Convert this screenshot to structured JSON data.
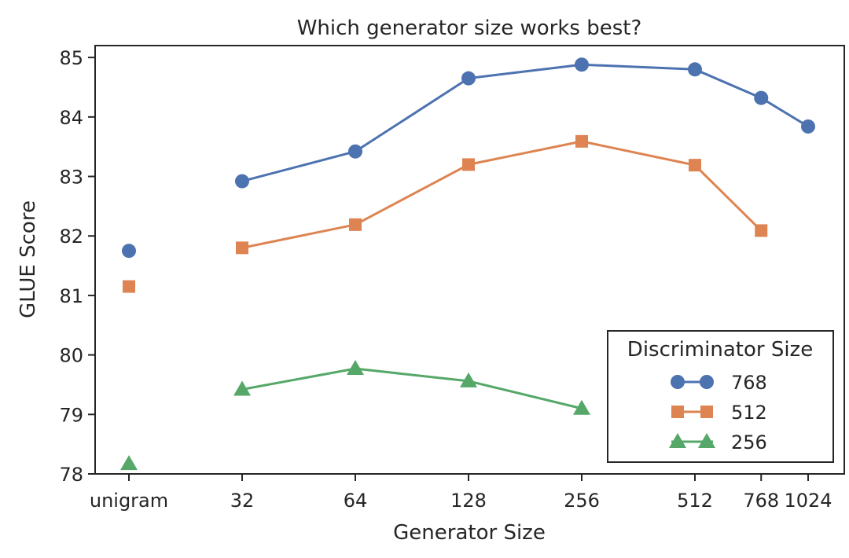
{
  "chart_data": {
    "type": "line",
    "title": "Which generator size works best?",
    "xlabel": "Generator Size",
    "ylabel": "GLUE Score",
    "x_categories": [
      "unigram",
      "32",
      "64",
      "128",
      "256",
      "512",
      "768",
      "1024"
    ],
    "x_positions": [
      0,
      1,
      2,
      3,
      4,
      5,
      5.585,
      6
    ],
    "ylim": [
      78,
      85.2
    ],
    "yticks": [
      78,
      79,
      80,
      81,
      82,
      83,
      84,
      85
    ],
    "grid": false,
    "legend": {
      "title": "Discriminator Size",
      "placement": "lower right"
    },
    "series": [
      {
        "name": "768",
        "color": "#4C72B0",
        "marker": "circle",
        "points": [
          {
            "x": "unigram",
            "y": 81.75,
            "connected": false
          },
          {
            "x": "32",
            "y": 82.92,
            "connected": true
          },
          {
            "x": "64",
            "y": 83.42,
            "connected": true
          },
          {
            "x": "128",
            "y": 84.65,
            "connected": true
          },
          {
            "x": "256",
            "y": 84.88,
            "connected": true
          },
          {
            "x": "512",
            "y": 84.8,
            "connected": true
          },
          {
            "x": "768",
            "y": 84.32,
            "connected": true
          },
          {
            "x": "1024",
            "y": 83.84,
            "connected": true
          }
        ]
      },
      {
        "name": "512",
        "color": "#DD8452",
        "marker": "square",
        "points": [
          {
            "x": "unigram",
            "y": 81.15,
            "connected": false
          },
          {
            "x": "32",
            "y": 81.8,
            "connected": true
          },
          {
            "x": "64",
            "y": 82.19,
            "connected": true
          },
          {
            "x": "128",
            "y": 83.2,
            "connected": true
          },
          {
            "x": "256",
            "y": 83.59,
            "connected": true
          },
          {
            "x": "512",
            "y": 83.19,
            "connected": true
          },
          {
            "x": "768",
            "y": 82.09,
            "connected": true
          }
        ]
      },
      {
        "name": "256",
        "color": "#55A868",
        "marker": "triangle",
        "points": [
          {
            "x": "unigram",
            "y": 78.17,
            "connected": false
          },
          {
            "x": "32",
            "y": 79.42,
            "connected": true
          },
          {
            "x": "64",
            "y": 79.77,
            "connected": true
          },
          {
            "x": "128",
            "y": 79.56,
            "connected": true
          },
          {
            "x": "256",
            "y": 79.1,
            "connected": true
          }
        ]
      }
    ]
  }
}
